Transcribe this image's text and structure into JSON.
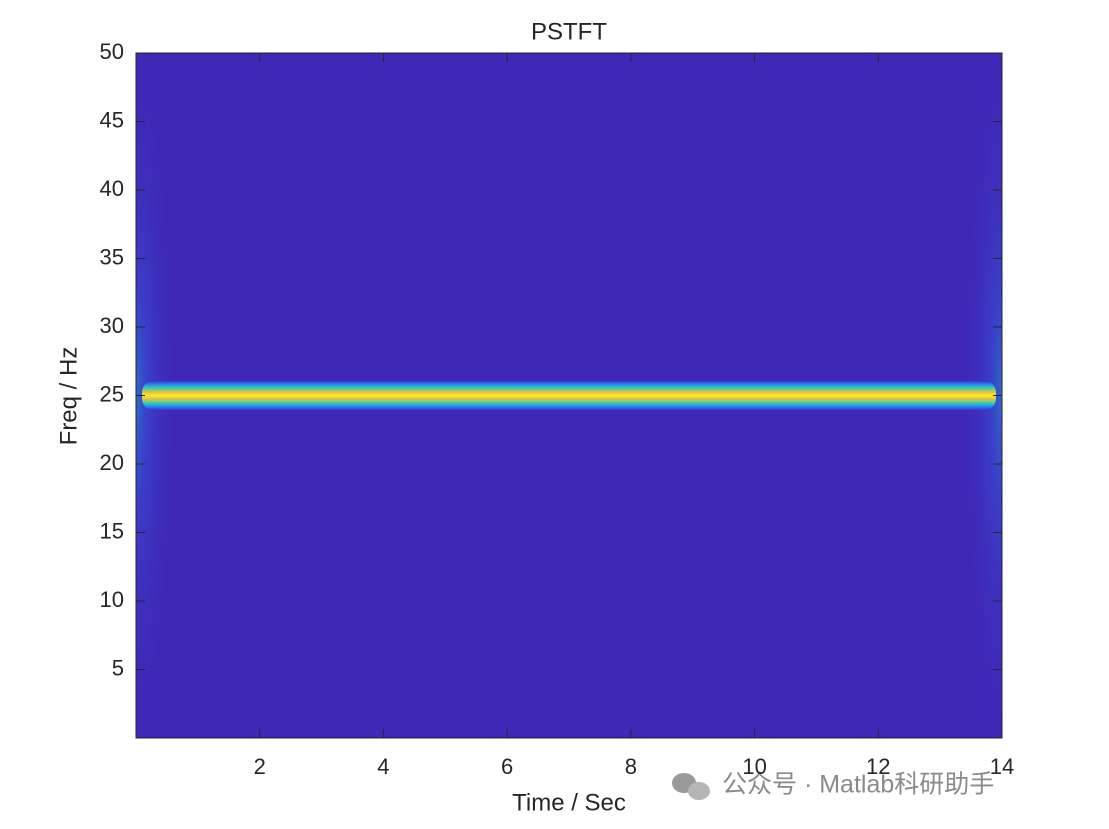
{
  "chart_data": {
    "type": "spectrogram",
    "title": "PSTFT",
    "xlabel": "Time / Sec",
    "ylabel": "Freq / Hz",
    "xlim": [
      0,
      14
    ],
    "xticks": [
      2,
      4,
      6,
      8,
      10,
      12,
      14
    ],
    "ylim": [
      0,
      50
    ],
    "yticks": [
      5,
      10,
      15,
      20,
      25,
      30,
      35,
      40,
      45,
      50
    ],
    "ridge_frequency": 25,
    "colormap": [
      "#3f28b8",
      "#2f6ff0",
      "#1fb8d8",
      "#6fd080",
      "#f0c040",
      "#f8ee20"
    ],
    "watermark": "公众号 · Matlab科研助手"
  }
}
